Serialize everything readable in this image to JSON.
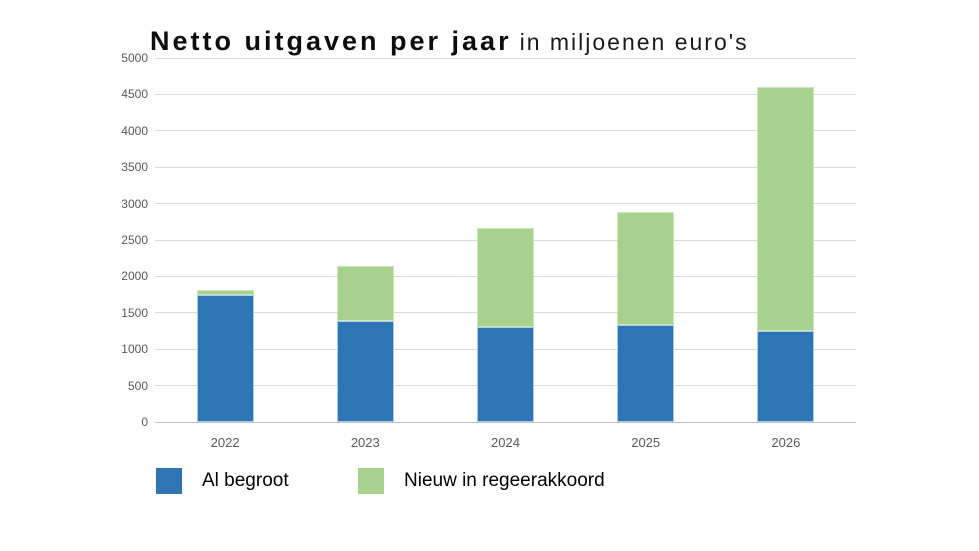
{
  "chart_data": {
    "type": "bar",
    "stacked": true,
    "title": "Netto uitgaven per jaar",
    "subtitle": "in miljoenen euro's",
    "categories": [
      "2022",
      "2023",
      "2024",
      "2025",
      "2026"
    ],
    "series": [
      {
        "name": "Al begroot",
        "color": "#2E75B6",
        "border_color": "#AECBEA",
        "values": [
          1750,
          1390,
          1310,
          1330,
          1250
        ]
      },
      {
        "name": "Nieuw in regeerakkoord",
        "color": "#A9D18E",
        "border_color": "#CDE6BC",
        "values": [
          70,
          760,
          1360,
          1550,
          3350
        ]
      }
    ],
    "totals": [
      1820,
      2150,
      2670,
      2880,
      4600
    ],
    "ylim": [
      0,
      5000
    ],
    "ytick_step": 500,
    "yticks": [
      "0",
      "500",
      "1000",
      "1500",
      "2000",
      "2500",
      "3000",
      "3500",
      "4000",
      "4500",
      "5000"
    ],
    "xlabel": "",
    "ylabel": "",
    "grid": true,
    "legend_position": "bottom-left",
    "colors": {
      "gridline": "#D9D9D9",
      "axis_line": "#BFBFBF",
      "tick_label_text": "#595959",
      "title_text": "#000000",
      "legend_text": "#000000",
      "background": "#FFFFFF"
    }
  }
}
